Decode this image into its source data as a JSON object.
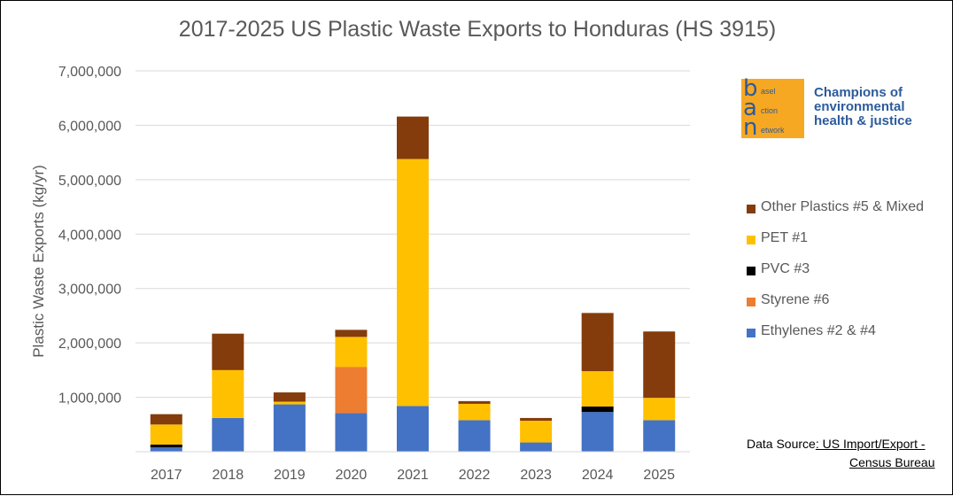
{
  "chart_data": {
    "type": "bar",
    "stacked": true,
    "title": "2017-2025 US Plastic Waste Exports to Honduras (HS 3915)",
    "ylabel": "Plastic Waste Exports (kg/yr)",
    "xlabel": "",
    "ylim": [
      0,
      7000000
    ],
    "yticks": [
      0,
      1000000,
      2000000,
      3000000,
      4000000,
      5000000,
      6000000,
      7000000
    ],
    "ytick_labels": [
      "",
      "1,000,000",
      "2,000,000",
      "3,000,000",
      "4,000,000",
      "5,000,000",
      "6,000,000",
      "7,000,000"
    ],
    "grid": true,
    "legend_position": "right",
    "categories": [
      "2017",
      "2018",
      "2019",
      "2020",
      "2021",
      "2022",
      "2023",
      "2024",
      "2025"
    ],
    "series": [
      {
        "name": "Ethylenes #2 & #4",
        "color": "#4472c4",
        "values": [
          80000,
          620000,
          870000,
          710000,
          840000,
          580000,
          170000,
          730000,
          580000
        ]
      },
      {
        "name": "Styrene #6",
        "color": "#ed7d31",
        "values": [
          0,
          0,
          0,
          850000,
          0,
          0,
          0,
          0,
          0
        ]
      },
      {
        "name": "PVC #3",
        "color": "#000000",
        "values": [
          50000,
          0,
          0,
          0,
          0,
          0,
          0,
          100000,
          0
        ]
      },
      {
        "name": "PET #1",
        "color": "#ffc000",
        "values": [
          370000,
          880000,
          50000,
          550000,
          4540000,
          300000,
          400000,
          650000,
          410000
        ]
      },
      {
        "name": "Other Plastics #5 & Mixed",
        "color": "#843c0c",
        "values": [
          190000,
          670000,
          170000,
          130000,
          780000,
          50000,
          50000,
          1070000,
          1220000
        ]
      }
    ],
    "legend_order": [
      "Other Plastics #5 & Mixed",
      "PET #1",
      "PVC #3",
      "Styrene #6",
      "Ethylenes #2 & #4"
    ]
  },
  "logo": {
    "letter_1": "b",
    "word_1": "asel",
    "letter_2": "a",
    "word_2": "ction",
    "letter_3": "n",
    "word_3": "etwork",
    "tagline": "Champions of environmental health & justice"
  },
  "source": {
    "prefix": "Data Source",
    "link_line1": ": US Import/Export -",
    "link_line2": "Census Bureau"
  }
}
